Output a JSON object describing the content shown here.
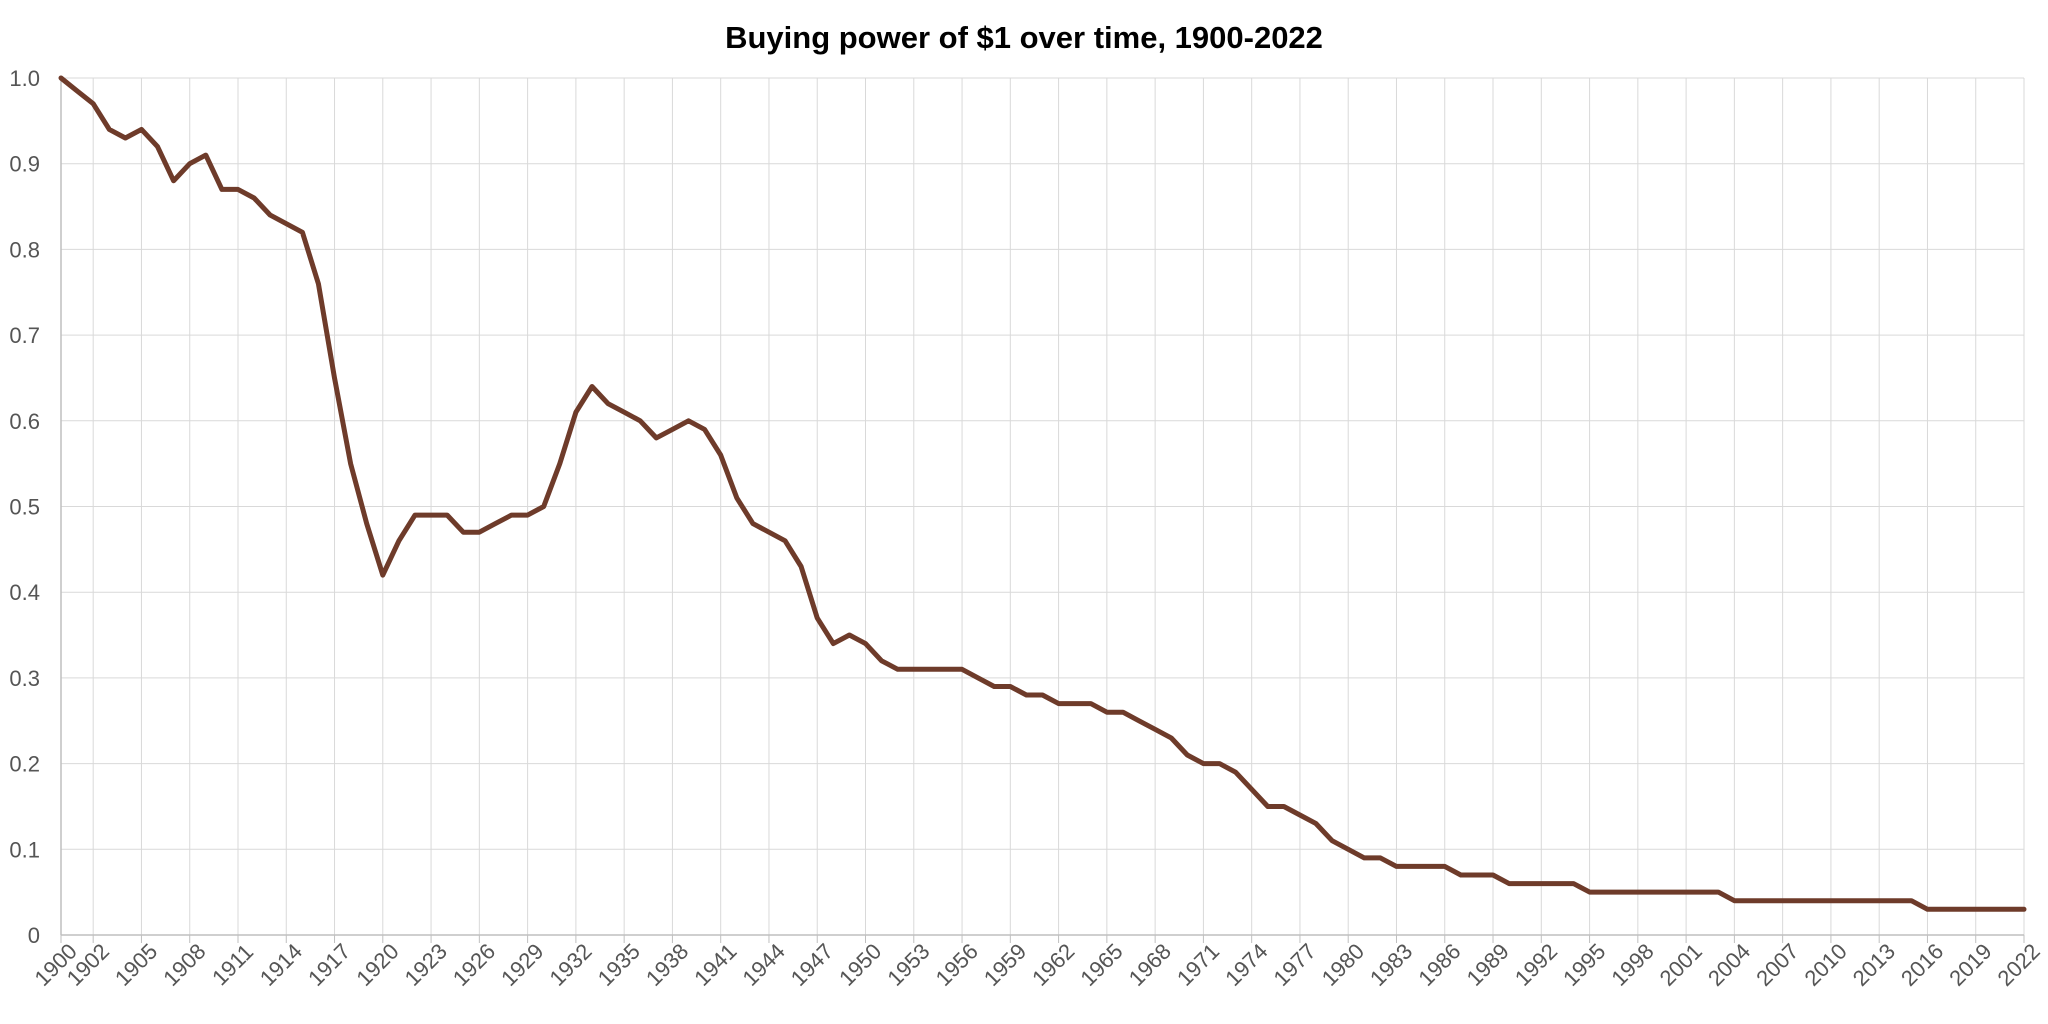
{
  "chart_data": {
    "type": "line",
    "title": "Buying power of $1 over time, 1900-2022",
    "xlabel": "",
    "ylabel": "",
    "xlim": [
      1900,
      2022
    ],
    "ylim": [
      0,
      1.0
    ],
    "grid": true,
    "legend": "none",
    "y_ticks": [
      "0",
      "0.1",
      "0.2",
      "0.3",
      "0.4",
      "0.5",
      "0.6",
      "0.7",
      "0.8",
      "0.9",
      "1.0"
    ],
    "x_tick_labels": [
      "1900",
      "1902",
      "1905",
      "1908",
      "1911",
      "1914",
      "1917",
      "1920",
      "1923",
      "1926",
      "1929",
      "1932",
      "1935",
      "1938",
      "1941",
      "1944",
      "1947",
      "1950",
      "1953",
      "1956",
      "1959",
      "1962",
      "1965",
      "1968",
      "1971",
      "1974",
      "1977",
      "1980",
      "1983",
      "1986",
      "1989",
      "1992",
      "1995",
      "1998",
      "2001",
      "2004",
      "2007",
      "2010",
      "2013",
      "2016",
      "2019",
      "2022"
    ],
    "series": [
      {
        "color": "#6e3b2a",
        "x": [
          1900,
          1901,
          1902,
          1903,
          1904,
          1905,
          1906,
          1907,
          1908,
          1909,
          1910,
          1911,
          1912,
          1913,
          1914,
          1915,
          1916,
          1917,
          1918,
          1919,
          1920,
          1921,
          1922,
          1923,
          1924,
          1925,
          1926,
          1927,
          1928,
          1929,
          1930,
          1931,
          1932,
          1933,
          1934,
          1935,
          1936,
          1937,
          1938,
          1939,
          1940,
          1941,
          1942,
          1943,
          1944,
          1945,
          1946,
          1947,
          1948,
          1949,
          1950,
          1951,
          1952,
          1953,
          1954,
          1955,
          1956,
          1957,
          1958,
          1959,
          1960,
          1961,
          1962,
          1963,
          1964,
          1965,
          1966,
          1967,
          1968,
          1969,
          1970,
          1971,
          1972,
          1973,
          1974,
          1975,
          1976,
          1977,
          1978,
          1979,
          1980,
          1981,
          1982,
          1983,
          1984,
          1985,
          1986,
          1987,
          1988,
          1989,
          1990,
          1991,
          1992,
          1993,
          1994,
          1995,
          1996,
          1997,
          1998,
          1999,
          2000,
          2001,
          2002,
          2003,
          2004,
          2005,
          2006,
          2007,
          2008,
          2009,
          2010,
          2011,
          2012,
          2013,
          2014,
          2015,
          2016,
          2017,
          2018,
          2019,
          2020,
          2021,
          2022
        ],
        "values": [
          1.0,
          0.985,
          0.97,
          0.94,
          0.93,
          0.94,
          0.92,
          0.88,
          0.9,
          0.91,
          0.87,
          0.87,
          0.86,
          0.84,
          0.83,
          0.82,
          0.76,
          0.65,
          0.55,
          0.48,
          0.42,
          0.46,
          0.49,
          0.49,
          0.49,
          0.47,
          0.47,
          0.48,
          0.49,
          0.49,
          0.5,
          0.55,
          0.61,
          0.64,
          0.62,
          0.61,
          0.6,
          0.58,
          0.59,
          0.6,
          0.59,
          0.56,
          0.51,
          0.48,
          0.47,
          0.46,
          0.43,
          0.37,
          0.34,
          0.35,
          0.34,
          0.32,
          0.31,
          0.31,
          0.31,
          0.31,
          0.31,
          0.3,
          0.29,
          0.29,
          0.28,
          0.28,
          0.27,
          0.27,
          0.27,
          0.26,
          0.26,
          0.25,
          0.24,
          0.23,
          0.21,
          0.2,
          0.2,
          0.19,
          0.17,
          0.15,
          0.15,
          0.14,
          0.13,
          0.11,
          0.1,
          0.09,
          0.09,
          0.08,
          0.08,
          0.08,
          0.08,
          0.07,
          0.07,
          0.07,
          0.06,
          0.06,
          0.06,
          0.06,
          0.06,
          0.05,
          0.05,
          0.05,
          0.05,
          0.05,
          0.05,
          0.05,
          0.05,
          0.05,
          0.04,
          0.04,
          0.04,
          0.04,
          0.04,
          0.04,
          0.04,
          0.04,
          0.04,
          0.04,
          0.04,
          0.04,
          0.03,
          0.03,
          0.03,
          0.03,
          0.03,
          0.03,
          0.03
        ]
      }
    ]
  }
}
